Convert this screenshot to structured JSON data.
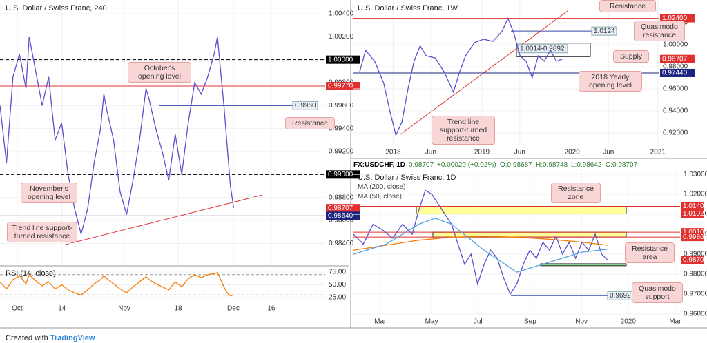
{
  "chart_data": [
    {
      "type": "line",
      "title": "U.S. Dollar / Swiss Franc, 240",
      "xlim": [
        0,
        100
      ],
      "ylim": [
        0.9821,
        1.0052
      ],
      "xticks": [
        {
          "value": 5.3,
          "label": "Oct"
        },
        {
          "value": 19.1,
          "label": "14"
        },
        {
          "value": 38.3,
          "label": "Nov"
        },
        {
          "value": 54.9,
          "label": "18"
        },
        {
          "value": 71.9,
          "label": "Dec"
        },
        {
          "value": 83.6,
          "label": "16"
        }
      ],
      "yticks": [
        {
          "value": 0.984,
          "label": "0.98400"
        },
        {
          "value": 0.986,
          "label": "0.98600"
        },
        {
          "value": 0.988,
          "label": "0.98800"
        },
        {
          "value": 0.99,
          "label": "0.99000"
        },
        {
          "value": 0.992,
          "label": "0.99200"
        },
        {
          "value": 0.994,
          "label": "0.99400"
        },
        {
          "value": 0.996,
          "label": "0.99600"
        },
        {
          "value": 0.998,
          "label": "0.99800"
        },
        {
          "value": 1.0,
          "label": "1.00000"
        },
        {
          "value": 1.002,
          "label": "1.00200"
        },
        {
          "value": 1.004,
          "label": "1.00400"
        }
      ],
      "series": [
        {
          "color": "#5a4fcf",
          "x": [
            0,
            2,
            4,
            6,
            8,
            9,
            11,
            13,
            15,
            17,
            19,
            21,
            23,
            25,
            27,
            29,
            31,
            32,
            33,
            35,
            37,
            39,
            41,
            43,
            45,
            46,
            48,
            50,
            52,
            54,
            56,
            58,
            60,
            62,
            64,
            66,
            67,
            68,
            69,
            70,
            71,
            72
          ],
          "values": [
            0.996,
            0.991,
            0.9985,
            1.0005,
            0.9975,
            1.002,
            0.999,
            0.996,
            0.9985,
            0.993,
            0.9945,
            0.99,
            0.987,
            0.9848,
            0.987,
            0.991,
            0.994,
            0.997,
            0.9955,
            0.993,
            0.9885,
            0.9865,
            0.9895,
            0.993,
            0.9975,
            0.9965,
            0.994,
            0.992,
            0.9895,
            0.9935,
            0.99,
            0.9945,
            0.998,
            0.997,
            0.9985,
            1.0005,
            1.002,
            0.999,
            0.996,
            0.9925,
            0.989,
            0.9871
          ]
        }
      ],
      "levels": [
        {
          "value": 1.0,
          "label": "1.00000",
          "color": "#000000",
          "style": "dashed"
        },
        {
          "value": 0.9977,
          "label": "0.99770",
          "color": "#e03030",
          "style": "solid"
        },
        {
          "value": 0.99,
          "label": "0.99000",
          "color": "#000000",
          "style": "dashed"
        },
        {
          "value": 0.98707,
          "label": "0.98707",
          "color": "#e03030",
          "style": "none"
        },
        {
          "value": 0.9864,
          "label": "0.98640",
          "color": "#1a237e",
          "style": "solid"
        }
      ],
      "tags": [
        {
          "value": 0.996,
          "label": "0.9960"
        }
      ],
      "annotations": [
        "October's opening level",
        "Resistance",
        "November's opening level",
        "Trend line support-turned resistance"
      ]
    },
    {
      "type": "line",
      "title": "RSI (14, close)",
      "xlim": [
        0,
        100
      ],
      "ylim": [
        14,
        86
      ],
      "yticks": [
        {
          "value": 25,
          "label": "25.00"
        },
        {
          "value": 50,
          "label": "50.00"
        },
        {
          "value": 75,
          "label": "75.00"
        }
      ],
      "bands": [
        30,
        70
      ],
      "series": [
        {
          "color": "#f57c00",
          "x": [
            0,
            2,
            4,
            6,
            8,
            9,
            11,
            13,
            15,
            17,
            19,
            21,
            23,
            25,
            27,
            29,
            31,
            32,
            33,
            35,
            37,
            39,
            41,
            43,
            45,
            46,
            48,
            50,
            52,
            54,
            56,
            58,
            60,
            62,
            64,
            66,
            67,
            68,
            69,
            70,
            71,
            72
          ],
          "values": [
            55,
            42,
            60,
            68,
            52,
            70,
            58,
            48,
            56,
            42,
            50,
            40,
            34,
            30,
            40,
            52,
            60,
            68,
            62,
            52,
            42,
            34,
            46,
            56,
            66,
            60,
            52,
            46,
            40,
            56,
            46,
            62,
            70,
            64,
            70,
            72,
            74,
            60,
            46,
            34,
            28,
            30
          ]
        }
      ]
    },
    {
      "type": "line",
      "title": "U.S. Dollar / Swiss Franc, 1W",
      "xlim": [
        0,
        101
      ],
      "ylim": [
        0.9094,
        1.0406
      ],
      "xticks": [
        {
          "value": 13.1,
          "label": "2018"
        },
        {
          "value": 25.5,
          "label": "Jun"
        },
        {
          "value": 42.4,
          "label": "2019"
        },
        {
          "value": 54.9,
          "label": "Jun"
        },
        {
          "value": 72.2,
          "label": "2020"
        },
        {
          "value": 84.2,
          "label": "Jun"
        },
        {
          "value": 100.5,
          "label": "2021"
        }
      ],
      "yticks": [
        {
          "value": 0.92,
          "label": "0.92000"
        },
        {
          "value": 0.94,
          "label": "0.94000"
        },
        {
          "value": 0.96,
          "label": "0.96000"
        },
        {
          "value": 0.98,
          "label": "0.98000"
        },
        {
          "value": 1.0,
          "label": "1.00000"
        },
        {
          "value": 1.02,
          "label": "1.02000"
        }
      ],
      "series": [
        {
          "color": "#5a4fcf",
          "x": [
            2,
            4,
            7,
            10,
            12,
            14,
            16,
            18,
            20,
            22,
            24,
            27,
            30,
            33,
            35,
            37,
            40,
            43,
            46,
            49,
            51,
            53,
            55,
            57,
            59,
            61,
            63,
            65,
            67,
            69
          ],
          "values": [
            0.975,
            0.995,
            0.985,
            0.965,
            0.94,
            0.918,
            0.93,
            0.96,
            0.985,
            0.999,
            0.99,
            0.988,
            0.975,
            0.957,
            0.975,
            0.99,
            1.002,
            1.005,
            1.003,
            1.012,
            1.024,
            1.01,
            0.99,
            0.985,
            0.97,
            0.99,
            0.985,
            0.995,
            0.985,
            0.9871
          ]
        }
      ],
      "levels": [
        {
          "value": 1.024,
          "label": "1.02400",
          "color": "#e03030",
          "style": "solid"
        },
        {
          "value": 0.98707,
          "label": "0.98707",
          "color": "#e03030",
          "style": "none"
        },
        {
          "value": 0.9744,
          "label": "0.97440",
          "color": "#1a237e",
          "style": "solid"
        }
      ],
      "tags": [
        {
          "value": 1.0124,
          "label": "1.0124"
        }
      ],
      "zones": [
        {
          "high": 1.0014,
          "low": 0.9892,
          "label": "1.0014-0.9892",
          "color": "none"
        }
      ],
      "annotations": [
        "Resistance",
        "Quasimodo resistance",
        "Supply",
        "2018 Yearly opening level",
        "Trend line support-turned resistance"
      ]
    },
    {
      "type": "line",
      "title": "U.S. Dollar / Swiss Franc, 1D",
      "header": [
        "FX:USDCHF, 1D",
        "0.98707",
        "+0.00020 (+0.02%)",
        "O:0.98687",
        "H:0.98748",
        "L:0.98642",
        "C:0.98707"
      ],
      "xlim": [
        0,
        100
      ],
      "ylim": [
        0.9593,
        1.0328
      ],
      "xticks": [
        {
          "value": 8.2,
          "label": "Mar"
        },
        {
          "value": 23.9,
          "label": "May"
        },
        {
          "value": 38.1,
          "label": "Jul"
        },
        {
          "value": 54.1,
          "label": "Sep"
        },
        {
          "value": 69.8,
          "label": "Nov"
        },
        {
          "value": 84.1,
          "label": "2020"
        },
        {
          "value": 98.5,
          "label": "Mar"
        }
      ],
      "yticks": [
        {
          "value": 0.96,
          "label": "0.96000"
        },
        {
          "value": 0.97,
          "label": "0.97000"
        },
        {
          "value": 0.98,
          "label": "0.98000"
        },
        {
          "value": 0.99,
          "label": "0.99000"
        },
        {
          "value": 1.0,
          "label": "1.00000"
        },
        {
          "value": 1.01,
          "label": "1.01000"
        },
        {
          "value": 1.02,
          "label": "1.02000"
        },
        {
          "value": 1.03,
          "label": "1.03000"
        }
      ],
      "series": [
        {
          "color": "#5a4fcf",
          "x": [
            0,
            3,
            6,
            9,
            12,
            15,
            18,
            20,
            22,
            24,
            26,
            28,
            30,
            32,
            34,
            36,
            38,
            40,
            42,
            44,
            46,
            48,
            50,
            52,
            54,
            56,
            58,
            60,
            62,
            64,
            66,
            68,
            70,
            72,
            74,
            76,
            77.8
          ],
          "values": [
            1.0,
            0.995,
            1.005,
            1.002,
            0.998,
            1.005,
            1.0,
            1.012,
            1.022,
            1.02,
            1.015,
            1.01,
            1.005,
            0.995,
            0.985,
            0.99,
            0.975,
            0.985,
            0.992,
            0.988,
            0.978,
            0.97,
            0.975,
            0.985,
            0.992,
            0.988,
            0.996,
            0.992,
            0.999,
            0.99,
            0.996,
            0.988,
            0.996,
            0.992,
            1.0,
            0.99,
            0.9871
          ]
        },
        {
          "name": "MA (200, close)",
          "color": "#f57c00",
          "x": [
            0,
            10,
            20,
            30,
            40,
            50,
            60,
            70,
            77.8
          ],
          "values": [
            0.992,
            0.9945,
            0.997,
            0.9985,
            0.999,
            0.9985,
            0.9975,
            0.996,
            0.9945
          ]
        },
        {
          "name": "MA (50, close)",
          "color": "#4fa3e0",
          "x": [
            0,
            10,
            20,
            25,
            30,
            40,
            50,
            60,
            70,
            77.8
          ],
          "values": [
            0.99,
            0.995,
            1.005,
            1.008,
            1.005,
            0.992,
            0.981,
            0.986,
            0.991,
            0.9925
          ]
        }
      ],
      "levels": [
        {
          "value": 1.014,
          "label": "1.01400",
          "color": "#e03030",
          "style": "solid"
        },
        {
          "value": 1.0102,
          "label": "1.01020",
          "color": "#e03030",
          "style": "solid"
        },
        {
          "value": 1.001,
          "label": "1.00100",
          "color": "#e03030",
          "style": "solid"
        },
        {
          "value": 0.9986,
          "label": "0.99860",
          "color": "#e03030",
          "style": "solid"
        },
        {
          "value": 0.98707,
          "label": "0.98707",
          "color": "#e03030",
          "style": "none"
        }
      ],
      "tags": [
        {
          "value": 0.9692,
          "label": "0.9692"
        }
      ],
      "zones": [
        {
          "high": 1.014,
          "low": 1.0102,
          "color": "#ffff99"
        },
        {
          "high": 1.001,
          "low": 0.9986,
          "color": "#ffff99"
        },
        {
          "high": 0.9852,
          "low": 0.9842,
          "color": "#8fd18f"
        }
      ],
      "annotations": [
        "Resistance zone",
        "Resistance area",
        "Quasimodo support"
      ]
    }
  ],
  "footer": {
    "text": "Created with",
    "brand": "TradingView"
  }
}
